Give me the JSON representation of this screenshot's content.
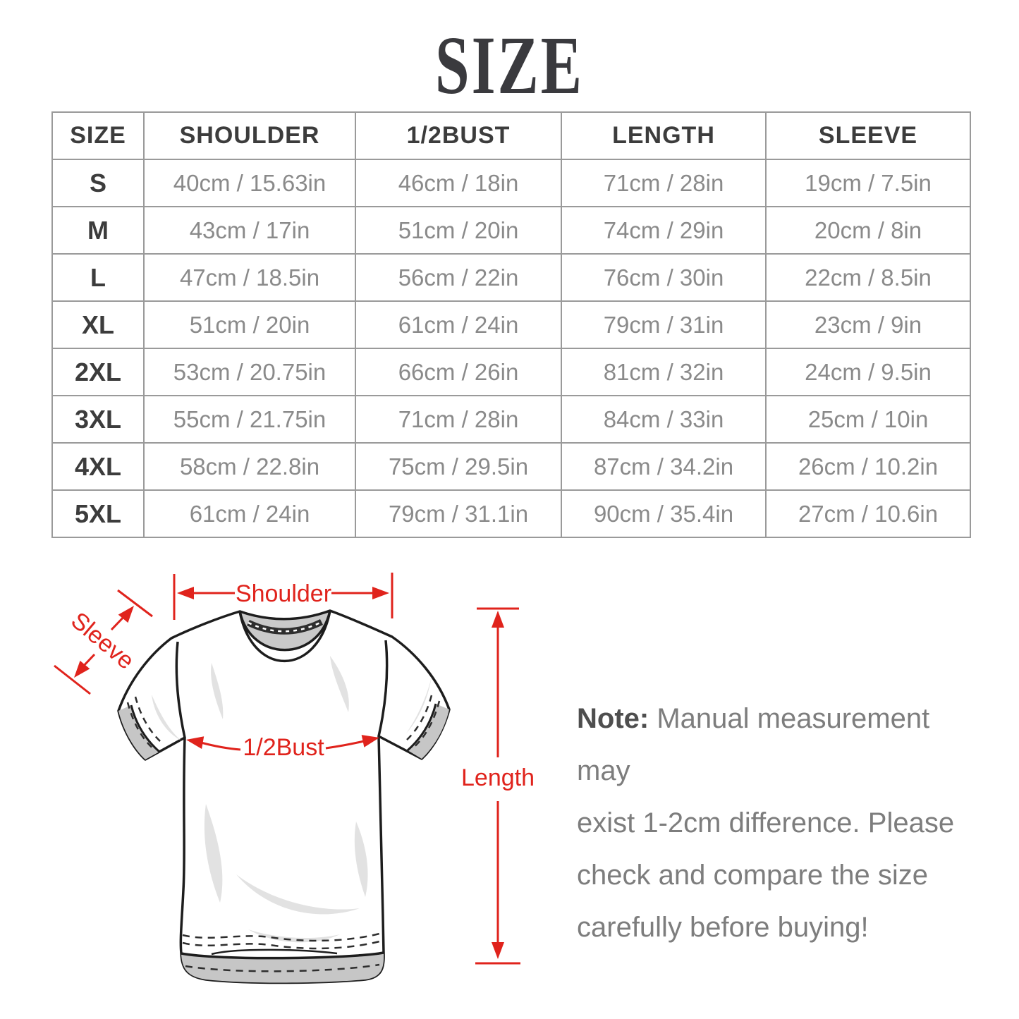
{
  "title": "SIZE",
  "table": {
    "headers": [
      "SIZE",
      "SHOULDER",
      "1/2BUST",
      "LENGTH",
      "SLEEVE"
    ],
    "rows": [
      [
        "S",
        "40cm / 15.63in",
        "46cm / 18in",
        "71cm / 28in",
        "19cm / 7.5in"
      ],
      [
        "M",
        "43cm / 17in",
        "51cm / 20in",
        "74cm / 29in",
        "20cm / 8in"
      ],
      [
        "L",
        "47cm / 18.5in",
        "56cm / 22in",
        "76cm / 30in",
        "22cm / 8.5in"
      ],
      [
        "XL",
        "51cm / 20in",
        "61cm / 24in",
        "79cm / 31in",
        "23cm / 9in"
      ],
      [
        "2XL",
        "53cm / 20.75in",
        "66cm / 26in",
        "81cm / 32in",
        "24cm / 9.5in"
      ],
      [
        "3XL",
        "55cm / 21.75in",
        "71cm / 28in",
        "84cm / 33in",
        "25cm / 10in"
      ],
      [
        "4XL",
        "58cm / 22.8in",
        "75cm / 29.5in",
        "87cm / 34.2in",
        "26cm / 10.2in"
      ],
      [
        "5XL",
        "61cm / 24in",
        "79cm / 31.1in",
        "90cm / 35.4in",
        "27cm / 10.6in"
      ]
    ]
  },
  "diagram": {
    "labels": {
      "shoulder": "Shoulder",
      "sleeve": "Sleeve",
      "bust": "1/2Bust",
      "length": "Length"
    },
    "accent_color": "#e0231c"
  },
  "note": {
    "label": "Note:",
    "lines": [
      "Manual measurement may",
      "exist 1-2cm difference. Please",
      "check and compare the size",
      "carefully before buying!"
    ]
  },
  "colors": {
    "accent": "#e0231c",
    "heading_text": "#3c3c3c",
    "value_text": "#8a8a8a",
    "table_border": "#9a9a9a",
    "note_text": "#7d7d7d"
  }
}
